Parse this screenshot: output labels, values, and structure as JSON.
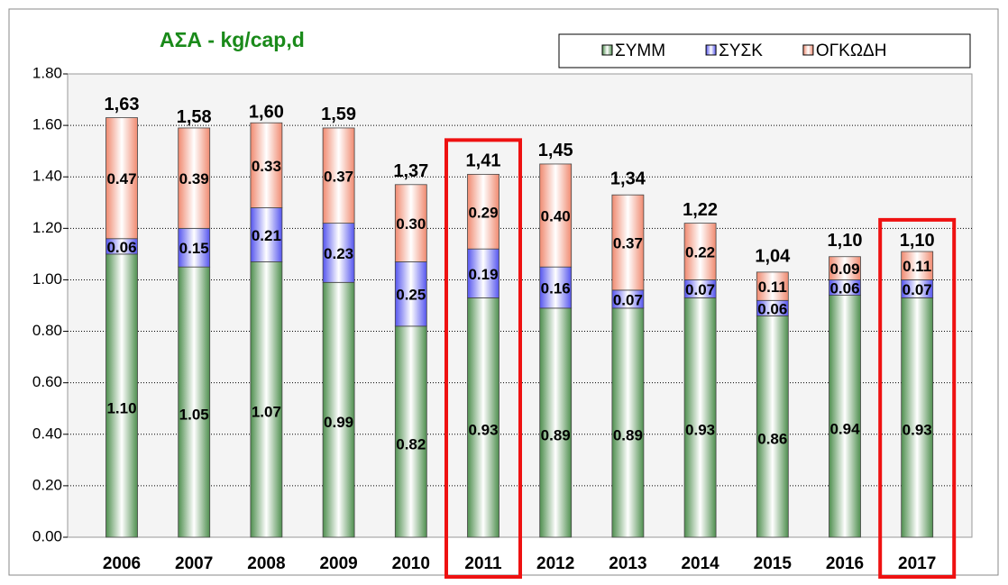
{
  "chart_data": {
    "type": "stacked_bar",
    "title": "ΑΣΑ - kg/cap,d",
    "categories": [
      "2006",
      "2007",
      "2008",
      "2009",
      "2010",
      "2011",
      "2012",
      "2013",
      "2014",
      "2015",
      "2016",
      "2017"
    ],
    "series": [
      {
        "name": "ΣΥΜΜ",
        "color": "#4f8f4f",
        "values": [
          1.1,
          1.05,
          1.07,
          0.99,
          0.82,
          0.93,
          0.89,
          0.89,
          0.93,
          0.86,
          0.94,
          0.93
        ],
        "value_labels": [
          "1.10",
          "1.05",
          "1.07",
          "0.99",
          "0.82",
          "0.93",
          "0.89",
          "0.89",
          "0.93",
          "0.86",
          "0.94",
          "0.93"
        ]
      },
      {
        "name": "ΣΥΣΚ",
        "color": "#5555ee",
        "values": [
          0.06,
          0.15,
          0.21,
          0.23,
          0.25,
          0.19,
          0.16,
          0.07,
          0.07,
          0.06,
          0.06,
          0.07
        ],
        "value_labels": [
          "0.06",
          "0.15",
          "0.21",
          "0.23",
          "0.25",
          "0.19",
          "0.16",
          "0.07",
          "0.07",
          "0.06",
          "0.06",
          "0.07"
        ]
      },
      {
        "name": "ΟΓΚΩΔΗ",
        "color": "#f08a70",
        "values": [
          0.47,
          0.39,
          0.33,
          0.37,
          0.3,
          0.29,
          0.4,
          0.37,
          0.22,
          0.11,
          0.09,
          0.11
        ],
        "value_labels": [
          "0.47",
          "0.39",
          "0.33",
          "0.37",
          "0.30",
          "0.29",
          "0.40",
          "0.37",
          "0.22",
          "0.11",
          "0.09",
          "0.11"
        ]
      }
    ],
    "totals": {
      "values": [
        1.63,
        1.58,
        1.6,
        1.59,
        1.37,
        1.41,
        1.45,
        1.34,
        1.22,
        1.04,
        1.1,
        1.1
      ],
      "value_labels": [
        "1,63",
        "1,58",
        "1,60",
        "1,59",
        "1,37",
        "1,41",
        "1,45",
        "1,34",
        "1,22",
        "1,04",
        "1,10",
        "1,10"
      ]
    },
    "ylim": [
      0,
      1.8
    ],
    "yticks": [
      {
        "value": 0,
        "label": "0.00"
      },
      {
        "value": 0.2,
        "label": "0.20"
      },
      {
        "value": 0.4,
        "label": "0.40"
      },
      {
        "value": 0.6,
        "label": "0.60"
      },
      {
        "value": 0.8,
        "label": "0.80"
      },
      {
        "value": 1.0,
        "label": "1.00"
      },
      {
        "value": 1.2,
        "label": "1.20"
      },
      {
        "value": 1.4,
        "label": "1.40"
      },
      {
        "value": 1.6,
        "label": "1.60"
      },
      {
        "value": 1.8,
        "label": "1.80"
      }
    ],
    "grid": true,
    "legend": "top-right",
    "highlight": [
      "2011",
      "2017"
    ]
  }
}
